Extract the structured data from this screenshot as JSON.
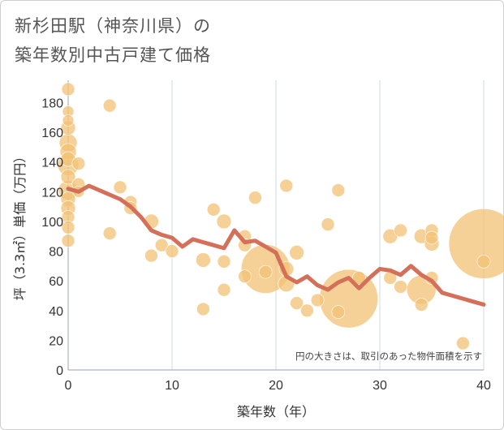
{
  "title_lines": [
    "新杉田駅（神奈川県）の",
    "築年数別中古戸建て価格"
  ],
  "chart_data": {
    "type": "scatter",
    "title": "新杉田駅（神奈川県）の築年数別中古戸建て価格",
    "xlabel": "築年数（年）",
    "ylabel": "坪（3.3㎡）単価（万円）",
    "xlim": [
      0,
      40
    ],
    "ylim": [
      0,
      195
    ],
    "xticks": [
      0,
      10,
      20,
      30,
      40
    ],
    "yticks": [
      0,
      20,
      40,
      60,
      80,
      100,
      120,
      140,
      160,
      180
    ],
    "grid": true,
    "annotation": "円の大きさは、取引のあった物件面積を示す",
    "colors": {
      "bubble": "#f3c274",
      "line": "#d4705a",
      "grid": "#cfd8e0"
    },
    "series": [
      {
        "type": "bubble",
        "points": [
          [
            0,
            189,
            8
          ],
          [
            0,
            174,
            7
          ],
          [
            0,
            168,
            7
          ],
          [
            0,
            163,
            9
          ],
          [
            0,
            153,
            11
          ],
          [
            0,
            147,
            10
          ],
          [
            0,
            142,
            9
          ],
          [
            0,
            138,
            13
          ],
          [
            0,
            130,
            9
          ],
          [
            0,
            121,
            12
          ],
          [
            0,
            115,
            9
          ],
          [
            0,
            109,
            9
          ],
          [
            0,
            103,
            8
          ],
          [
            0,
            96,
            8
          ],
          [
            0,
            87,
            8
          ],
          [
            1,
            139,
            8
          ],
          [
            1,
            125,
            8
          ],
          [
            1,
            120,
            7
          ],
          [
            4,
            178,
            8
          ],
          [
            4,
            92,
            8
          ],
          [
            5,
            123,
            8
          ],
          [
            6,
            113,
            8
          ],
          [
            6,
            109,
            8
          ],
          [
            8,
            100,
            9
          ],
          [
            8,
            77,
            8
          ],
          [
            9,
            84,
            8
          ],
          [
            10,
            80,
            8
          ],
          [
            13,
            74,
            9
          ],
          [
            13,
            41,
            8
          ],
          [
            14,
            108,
            8
          ],
          [
            15,
            100,
            9
          ],
          [
            15,
            73,
            8
          ],
          [
            15,
            54,
            8
          ],
          [
            17,
            90,
            8
          ],
          [
            17,
            84,
            8
          ],
          [
            17,
            63,
            8
          ],
          [
            18,
            116,
            8
          ],
          [
            19,
            68,
            30
          ],
          [
            19,
            66,
            8
          ],
          [
            21,
            124,
            8
          ],
          [
            21,
            68,
            9
          ],
          [
            21,
            58,
            10
          ],
          [
            22,
            79,
            9
          ],
          [
            22,
            45,
            8
          ],
          [
            23,
            40,
            8
          ],
          [
            24,
            47,
            8
          ],
          [
            25,
            98,
            8
          ],
          [
            26,
            121,
            8
          ],
          [
            26,
            39,
            8
          ],
          [
            27,
            48,
            36
          ],
          [
            28,
            62,
            8
          ],
          [
            31,
            90,
            9
          ],
          [
            31,
            62,
            8
          ],
          [
            32,
            94,
            8
          ],
          [
            32,
            56,
            8
          ],
          [
            34,
            90,
            9
          ],
          [
            34,
            54,
            18
          ],
          [
            34,
            44,
            8
          ],
          [
            35,
            94,
            8
          ],
          [
            35,
            89,
            8
          ],
          [
            35,
            85,
            9
          ],
          [
            35,
            62,
            8
          ],
          [
            38,
            18,
            8
          ],
          [
            40,
            85,
            43
          ],
          [
            40,
            73,
            8
          ]
        ]
      },
      {
        "type": "line",
        "x": [
          0,
          1,
          2,
          3,
          4,
          5,
          6,
          7,
          8,
          9,
          10,
          11,
          12,
          13,
          14,
          15,
          16,
          17,
          18,
          19,
          20,
          21,
          22,
          23,
          24,
          25,
          26,
          27,
          28,
          29,
          30,
          31,
          32,
          33,
          34,
          35,
          36,
          37,
          38,
          39,
          40
        ],
        "y": [
          122,
          120,
          124,
          121,
          118,
          115,
          110,
          103,
          94,
          91,
          89,
          83,
          88,
          86,
          84,
          82,
          94,
          86,
          87,
          83,
          79,
          63,
          59,
          63,
          57,
          54,
          59,
          62,
          55,
          62,
          68,
          67,
          64,
          70,
          64,
          60,
          52,
          50,
          48,
          46,
          44
        ]
      }
    ]
  }
}
